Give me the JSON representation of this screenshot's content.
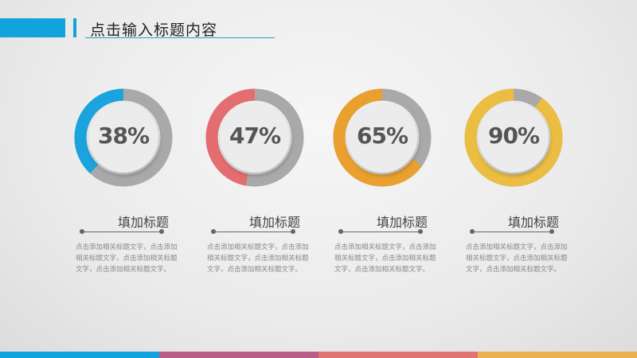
{
  "header": {
    "title": "点击输入标题内容",
    "accent": "#11a3dd"
  },
  "cards": [
    {
      "percent": "38%",
      "value": 0.38,
      "color": "#1aa3dc",
      "title": "填加标题",
      "desc": "点击添加相关标题文字，点击添加相关标题文字，点击添加相关标题文字，点击添加相关标题文字。"
    },
    {
      "percent": "47%",
      "value": 0.47,
      "color": "#e46d70",
      "title": "填加标题",
      "desc": "点击添加相关标题文字，点击添加相关标题文字，点击添加相关标题文字，点击添加相关标题文字。"
    },
    {
      "percent": "65%",
      "value": 0.65,
      "color": "#eaa02e",
      "title": "填加标题",
      "desc": "点击添加相关标题文字，点击添加相关标题文字，点击添加相关标题文字，点击添加相关标题文字。"
    },
    {
      "percent": "90%",
      "value": 0.9,
      "color": "#ebbd42",
      "title": "填加标题",
      "desc": "点击添加相关标题文字，点击添加相关标题文字，点击添加相关标题文字，点击添加相关标题文字。"
    }
  ],
  "footer_colors": [
    "#11a3dd",
    "#b95e86",
    "#e17472",
    "#eab250"
  ]
}
